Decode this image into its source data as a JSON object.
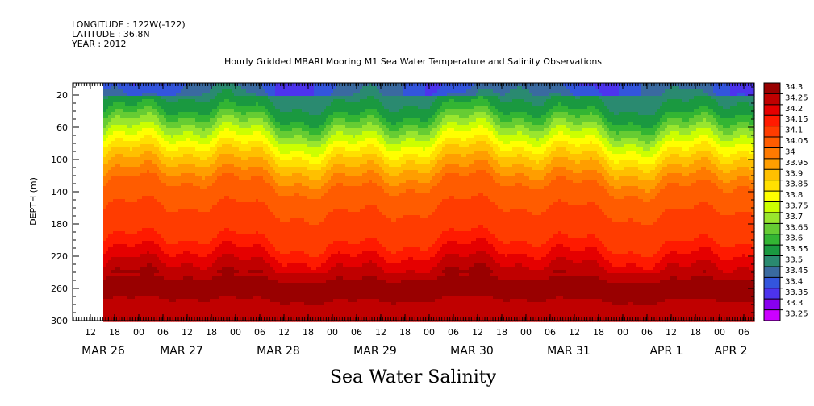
{
  "header": {
    "longitude": "LONGITUDE : 122W(-122)",
    "latitude": "LATITUDE : 36.8N",
    "year": "YEAR : 2012"
  },
  "chart_data": {
    "type": "heatmap",
    "title": "Hourly Gridded MBARI Mooring M1 Sea Water Temperature and Salinity Observations",
    "ylabel": "DEPTH (m)",
    "bottom_label": "Sea Water Salinity",
    "ylim": [
      300,
      5
    ],
    "y_ticks": [
      20,
      60,
      100,
      140,
      180,
      220,
      260,
      300
    ],
    "x_hour_ticks": [
      "12",
      "18",
      "00",
      "06",
      "12",
      "18",
      "00",
      "06",
      "12",
      "18",
      "00",
      "06",
      "12",
      "18",
      "00",
      "06",
      "12",
      "18",
      "00",
      "06",
      "12",
      "18",
      "00",
      "06",
      "12",
      "18",
      "00",
      "06",
      "12",
      "18",
      "00",
      "06"
    ],
    "x_date_labels": [
      "MAR 26",
      "MAR 27",
      "MAR 28",
      "MAR 29",
      "MAR 30",
      "MAR 31",
      "APR  1",
      "APR  2"
    ],
    "data_start": "MAR 26 17:00",
    "colorbar": {
      "levels": [
        "34.3",
        "34.25",
        "34.2",
        "34.15",
        "34.1",
        "34.05",
        "34",
        "33.95",
        "33.9",
        "33.85",
        "33.8",
        "33.75",
        "33.7",
        "33.65",
        "33.6",
        "33.55",
        "33.5",
        "33.45",
        "33.4",
        "33.35",
        "33.3",
        "33.25"
      ],
      "colors": [
        "#990000",
        "#c00000",
        "#e50000",
        "#ff1a00",
        "#ff3c00",
        "#ff5c00",
        "#ff7a00",
        "#ff9e00",
        "#ffc000",
        "#ffe000",
        "#ffff00",
        "#ccff00",
        "#99e62e",
        "#66cc33",
        "#33b533",
        "#1a9940",
        "#2a8a70",
        "#3a6aa0",
        "#3355dd",
        "#4d33ee",
        "#8800ee",
        "#cc00ff"
      ],
      "range": [
        33.25,
        34.3
      ]
    },
    "depth_profile": [
      {
        "depth": 10,
        "salinity": 33.45
      },
      {
        "depth": 40,
        "salinity": 33.55
      },
      {
        "depth": 70,
        "salinity": 33.72
      },
      {
        "depth": 100,
        "salinity": 33.88
      },
      {
        "depth": 130,
        "salinity": 34.0
      },
      {
        "depth": 160,
        "salinity": 34.05
      },
      {
        "depth": 200,
        "salinity": 34.1
      },
      {
        "depth": 230,
        "salinity": 34.2
      },
      {
        "depth": 255,
        "salinity": 34.28
      },
      {
        "depth": 290,
        "salinity": 34.22
      }
    ]
  }
}
